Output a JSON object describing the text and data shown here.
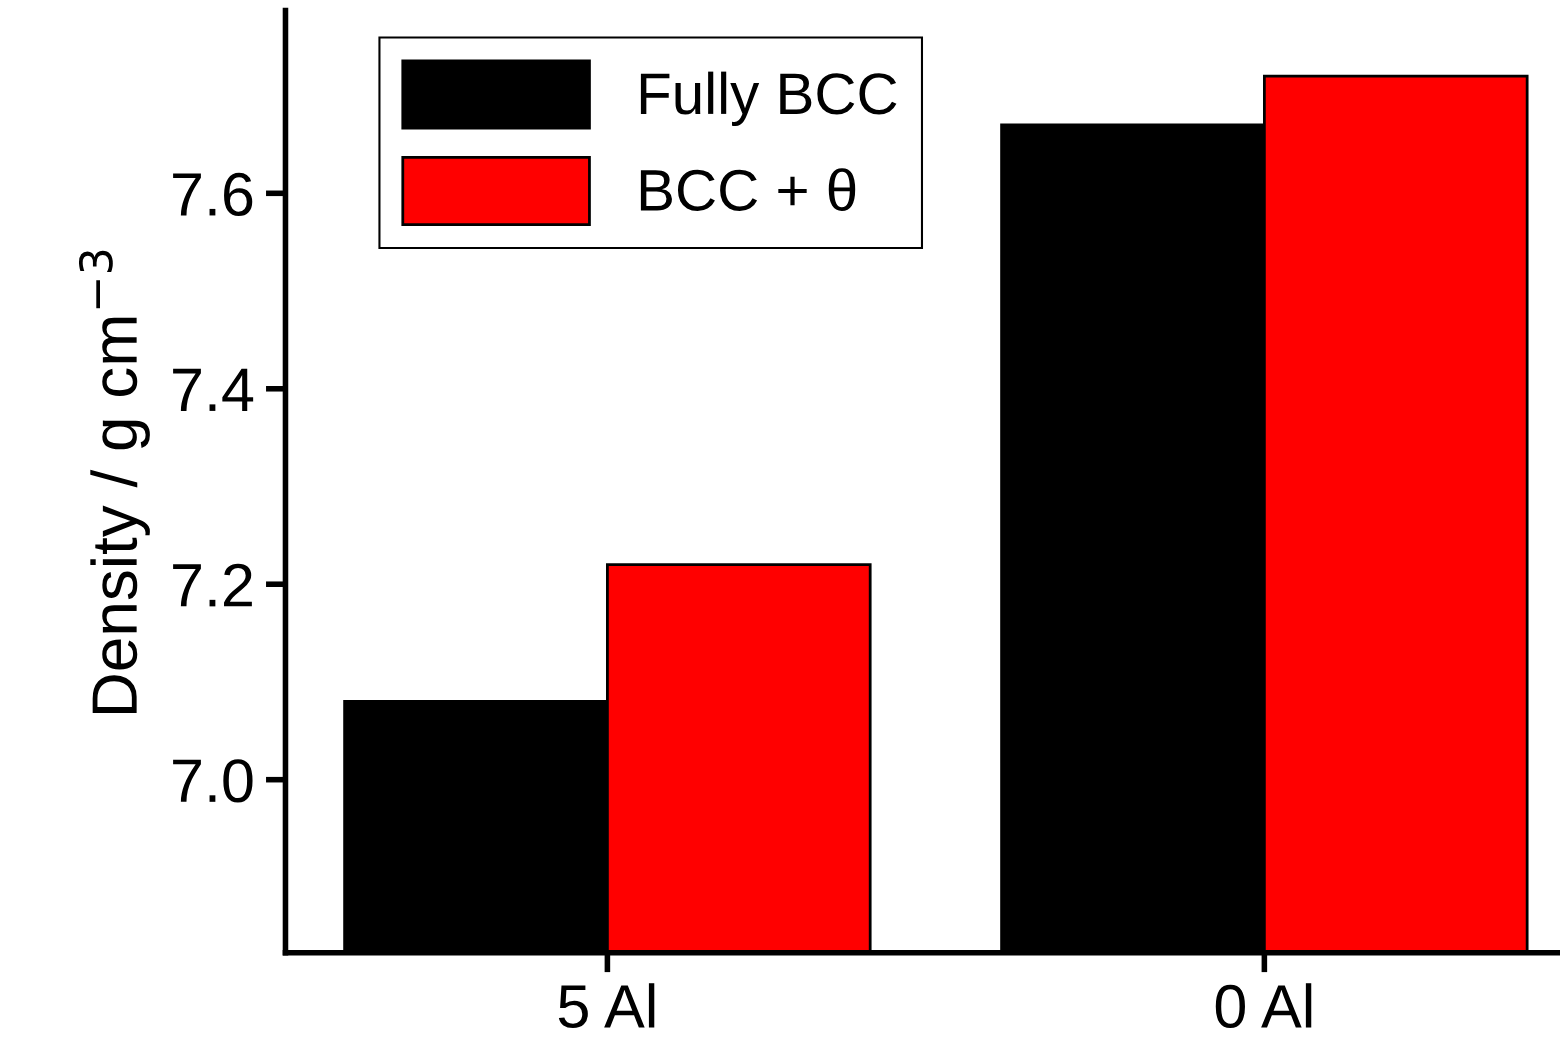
{
  "chart_data": {
    "type": "bar",
    "ylabel": "Density / g cm$^{−3}$",
    "categories": [
      "5 Al",
      "0 Al"
    ],
    "series": [
      {
        "name": "Fully BCC",
        "color": "#000000",
        "values": [
          7.08,
          7.67
        ]
      },
      {
        "name": "BCC + θ",
        "color": "#ff0000",
        "values": [
          7.22,
          7.72
        ]
      }
    ],
    "ylim": [
      6.823,
      7.787
    ],
    "yticks": [
      {
        "value": 7.0,
        "label": "7.0"
      },
      {
        "value": 7.2,
        "label": "7.2"
      },
      {
        "value": 7.4,
        "label": "7.4"
      },
      {
        "value": 7.6,
        "label": "7.6"
      }
    ],
    "grid": false,
    "legend": "top left"
  }
}
